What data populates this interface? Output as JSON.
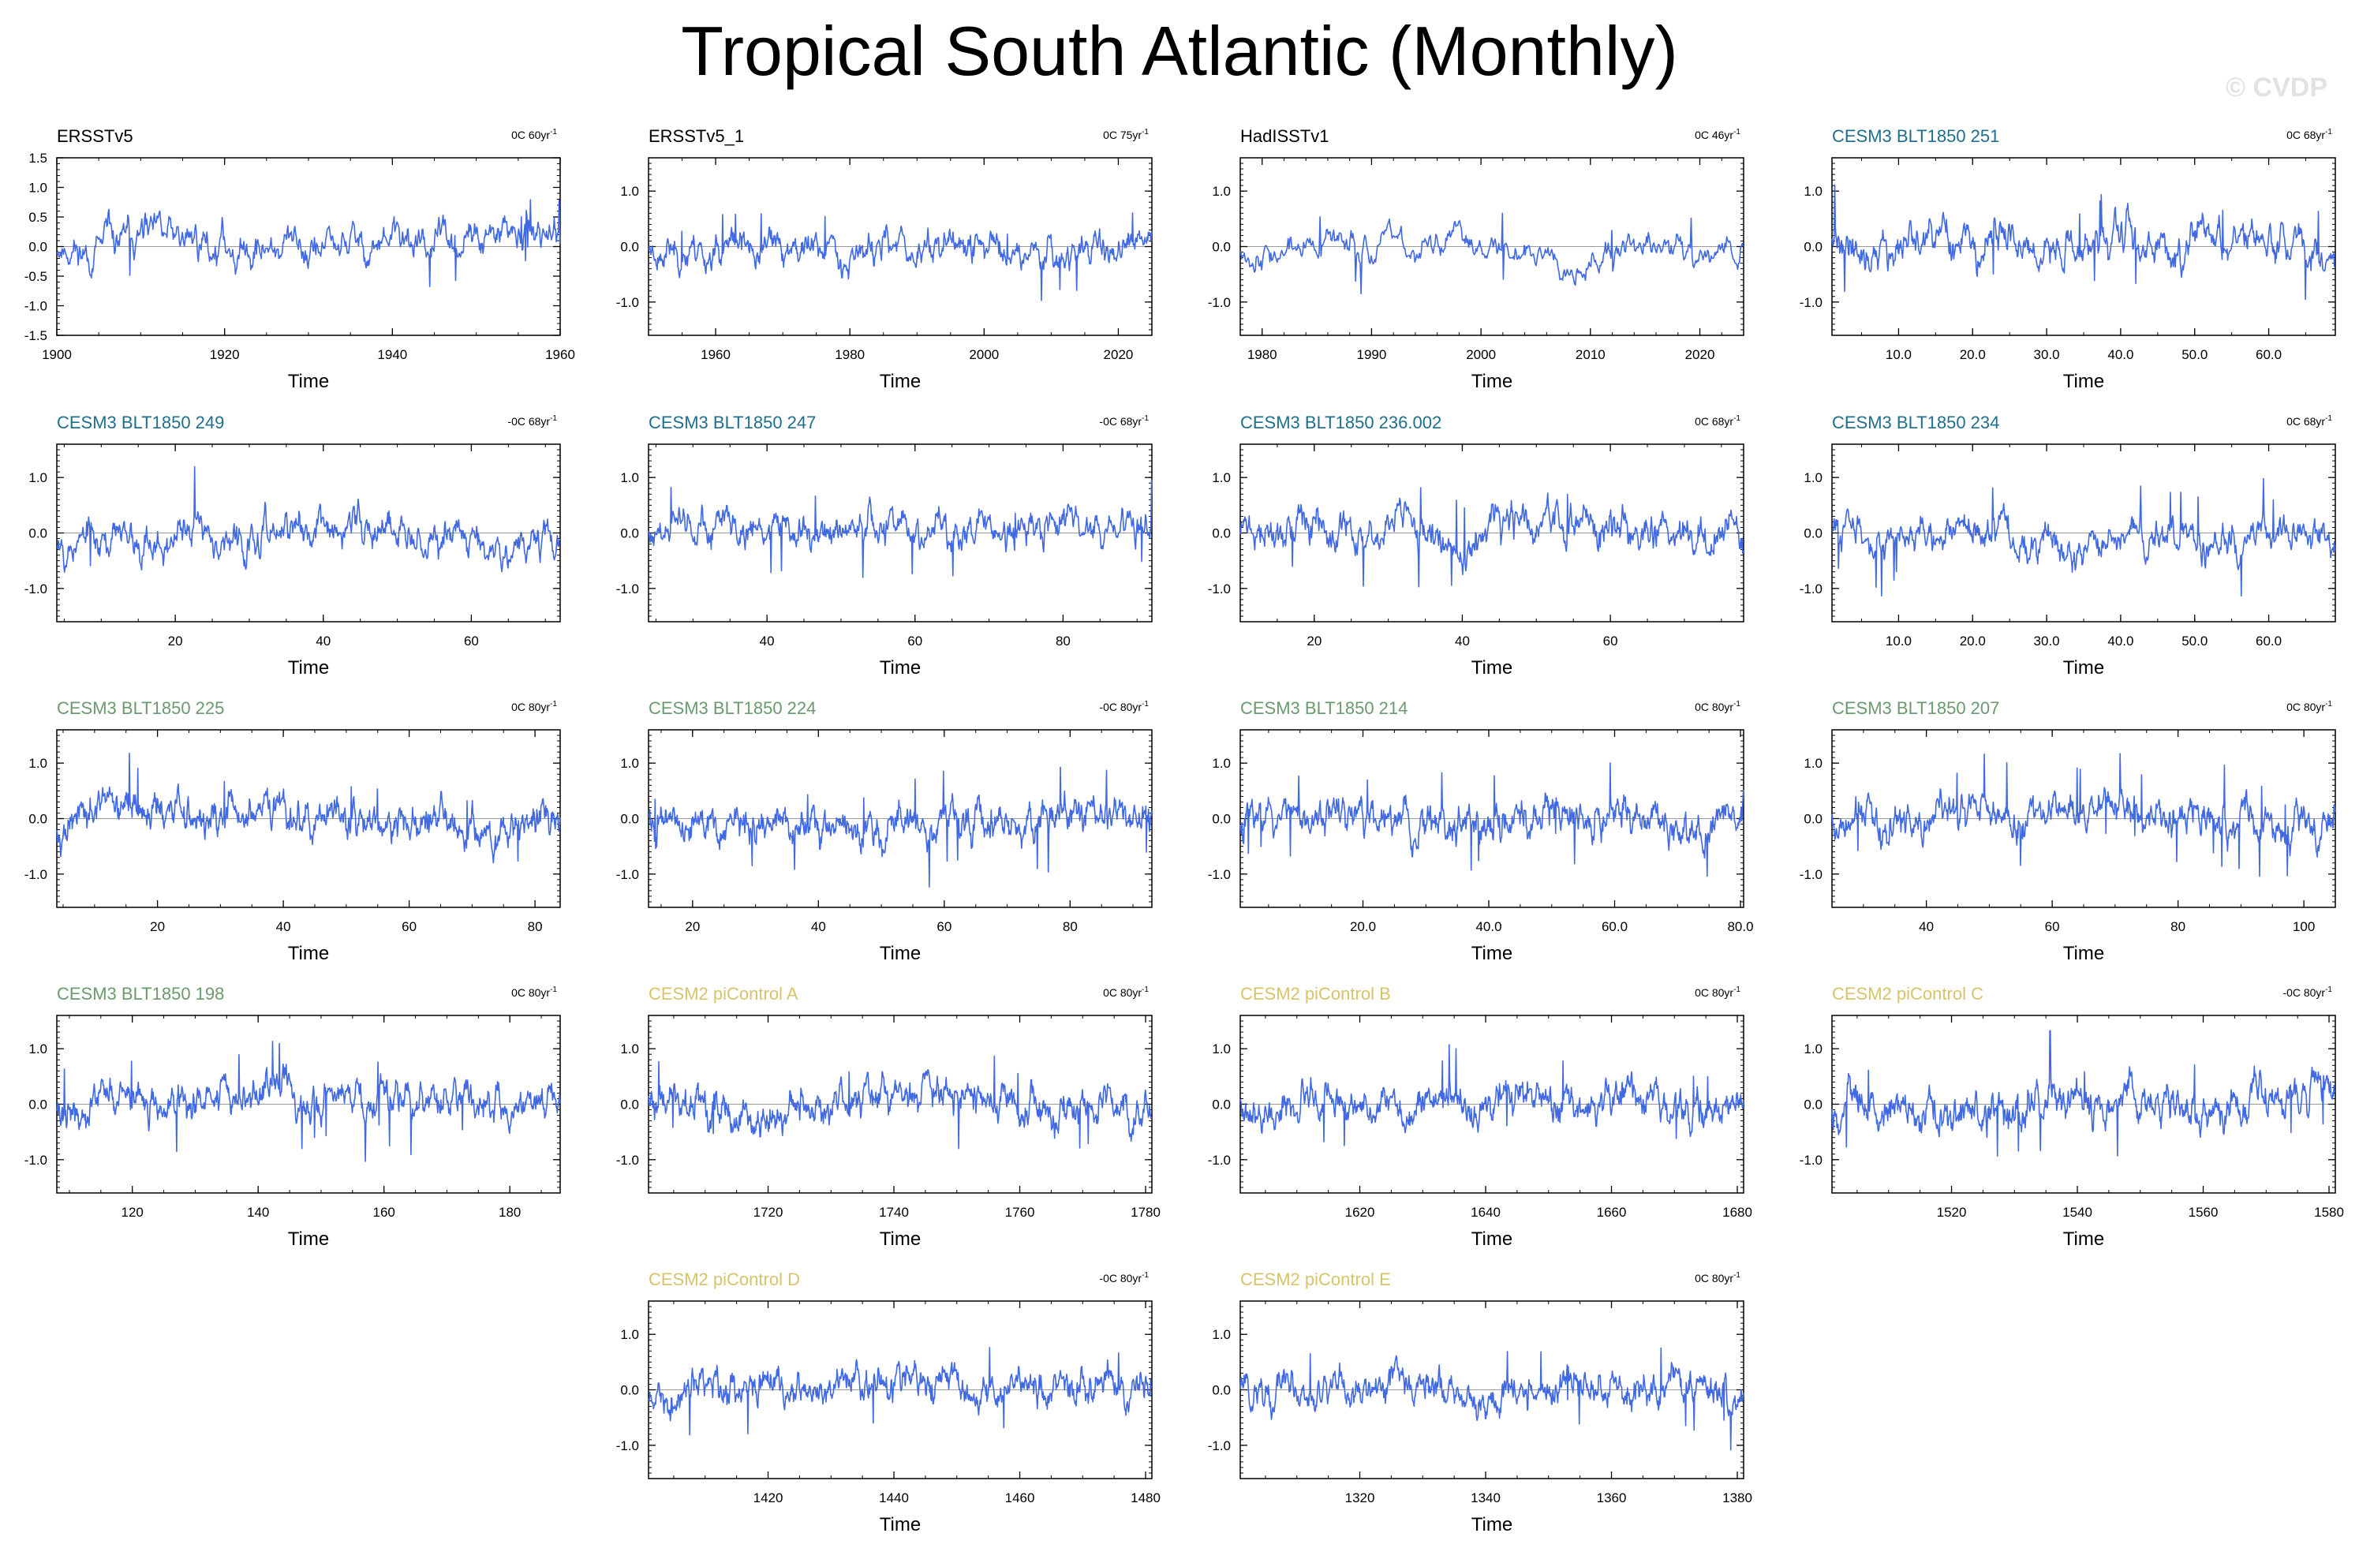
{
  "title": "Tropical South Atlantic (Monthly)",
  "watermark": "© CVDP",
  "colors": {
    "series": "#4169e1",
    "obs_title": "#000000",
    "cesm3_a": "#1f6e8c",
    "cesm3_b": "#6a9a6e",
    "cesm2": "#d7c46a",
    "axis": "#000000",
    "zero_line": "#9a9a9a"
  },
  "chart_data": [
    {
      "type": "line",
      "title": "ERSSTv5",
      "title_color": "obs",
      "trend": "0C 60yr",
      "trend_unit": "-1",
      "xlabel": "Time",
      "xlim": [
        1900,
        1960
      ],
      "xticks": [
        "1900",
        "1920",
        "1940",
        "1960"
      ],
      "ylim": [
        -1.5,
        1.5
      ],
      "yticks": [
        "1.5",
        "1.0",
        "0.5",
        "0.0",
        "-0.5",
        "-1.0",
        "-1.5"
      ],
      "seed": 11,
      "amp": 0.38
    },
    {
      "type": "line",
      "title": "ERSSTv5_1",
      "title_color": "obs",
      "trend": "0C 75yr",
      "trend_unit": "-1",
      "xlabel": "Time",
      "xlim": [
        1950,
        2025
      ],
      "xticks": [
        "1960",
        "1980",
        "2000",
        "2020"
      ],
      "xtick_vals": [
        1960,
        1980,
        2000,
        2020
      ],
      "ylim": [
        -1.6,
        1.6
      ],
      "yticks": [
        "1.0",
        "0.0",
        "-1.0"
      ],
      "seed": 23,
      "amp": 0.35
    },
    {
      "type": "line",
      "title": "HadISSTv1",
      "title_color": "obs",
      "trend": "0C 46yr",
      "trend_unit": "-1",
      "xlabel": "Time",
      "xlim": [
        1978,
        2024
      ],
      "xticks": [
        "1980",
        "1990",
        "2000",
        "2010",
        "2020"
      ],
      "xtick_vals": [
        1980,
        1990,
        2000,
        2010,
        2020
      ],
      "ylim": [
        -1.6,
        1.6
      ],
      "yticks": [
        "1.0",
        "0.0",
        "-1.0"
      ],
      "seed": 37,
      "amp": 0.33
    },
    {
      "type": "line",
      "title": "CESM3 BLT1850 251",
      "title_color": "cesm3_a",
      "trend": "0C 68yr",
      "trend_unit": "-1",
      "xlabel": "Time",
      "xlim": [
        1,
        69
      ],
      "xticks": [
        "10.0",
        "20.0",
        "30.0",
        "40.0",
        "50.0",
        "60.0"
      ],
      "xtick_vals": [
        10,
        20,
        30,
        40,
        50,
        60
      ],
      "ylim": [
        -1.6,
        1.6
      ],
      "yticks": [
        "1.0",
        "0.0",
        "-1.0"
      ],
      "seed": 41,
      "amp": 0.42
    },
    {
      "type": "line",
      "title": "CESM3 BLT1850 249",
      "title_color": "cesm3_a",
      "trend": "-0C 68yr",
      "trend_unit": "-1",
      "xlabel": "Time",
      "xlim": [
        4,
        72
      ],
      "xticks": [
        "20",
        "40",
        "60"
      ],
      "xtick_vals": [
        20,
        40,
        60
      ],
      "ylim": [
        -1.6,
        1.6
      ],
      "yticks": [
        "1.0",
        "0.0",
        "-1.0"
      ],
      "seed": 53,
      "amp": 0.42
    },
    {
      "type": "line",
      "title": "CESM3 BLT1850 247",
      "title_color": "cesm3_a",
      "trend": "-0C 68yr",
      "trend_unit": "-1",
      "xlabel": "Time",
      "xlim": [
        24,
        92
      ],
      "xticks": [
        "40",
        "60",
        "80"
      ],
      "xtick_vals": [
        40,
        60,
        80
      ],
      "ylim": [
        -1.6,
        1.6
      ],
      "yticks": [
        "1.0",
        "0.0",
        "-1.0"
      ],
      "seed": 61,
      "amp": 0.4
    },
    {
      "type": "line",
      "title": "CESM3 BLT1850 236.002",
      "title_color": "cesm3_a",
      "trend": "0C 68yr",
      "trend_unit": "-1",
      "xlabel": "Time",
      "xlim": [
        10,
        78
      ],
      "xticks": [
        "20",
        "40",
        "60"
      ],
      "xtick_vals": [
        20,
        40,
        60
      ],
      "ylim": [
        -1.6,
        1.6
      ],
      "yticks": [
        "1.0",
        "0.0",
        "-1.0"
      ],
      "seed": 71,
      "amp": 0.44
    },
    {
      "type": "line",
      "title": "CESM3 BLT1850 234",
      "title_color": "cesm3_a",
      "trend": "0C 68yr",
      "trend_unit": "-1",
      "xlabel": "Time",
      "xlim": [
        1,
        69
      ],
      "xticks": [
        "10.0",
        "20.0",
        "30.0",
        "40.0",
        "50.0",
        "60.0"
      ],
      "xtick_vals": [
        10,
        20,
        30,
        40,
        50,
        60
      ],
      "ylim": [
        -1.6,
        1.6
      ],
      "yticks": [
        "1.0",
        "0.0",
        "-1.0"
      ],
      "seed": 83,
      "amp": 0.4
    },
    {
      "type": "line",
      "title": "CESM3 BLT1850 225",
      "title_color": "cesm3_b",
      "trend": "0C 80yr",
      "trend_unit": "-1",
      "xlabel": "Time",
      "xlim": [
        4,
        84
      ],
      "xticks": [
        "20",
        "40",
        "60",
        "80"
      ],
      "xtick_vals": [
        20,
        40,
        60,
        80
      ],
      "ylim": [
        -1.6,
        1.6
      ],
      "yticks": [
        "1.0",
        "0.0",
        "-1.0"
      ],
      "seed": 97,
      "amp": 0.42
    },
    {
      "type": "line",
      "title": "CESM3 BLT1850 224",
      "title_color": "cesm3_b",
      "trend": "-0C 80yr",
      "trend_unit": "-1",
      "xlabel": "Time",
      "xlim": [
        13,
        93
      ],
      "xticks": [
        "20",
        "40",
        "60",
        "80"
      ],
      "xtick_vals": [
        20,
        40,
        60,
        80
      ],
      "ylim": [
        -1.6,
        1.6
      ],
      "yticks": [
        "1.0",
        "0.0",
        "-1.0"
      ],
      "seed": 101,
      "amp": 0.42
    },
    {
      "type": "line",
      "title": "CESM3 BLT1850 214",
      "title_color": "cesm3_b",
      "trend": "0C 80yr",
      "trend_unit": "-1",
      "xlabel": "Time",
      "xlim": [
        0.5,
        80.5
      ],
      "xticks": [
        "20.0",
        "40.0",
        "60.0",
        "80.0"
      ],
      "xtick_vals": [
        20,
        40,
        60,
        80
      ],
      "ylim": [
        -1.6,
        1.6
      ],
      "yticks": [
        "1.0",
        "0.0",
        "-1.0"
      ],
      "seed": 113,
      "amp": 0.42
    },
    {
      "type": "line",
      "title": "CESM3 BLT1850 207",
      "title_color": "cesm3_b",
      "trend": "0C 80yr",
      "trend_unit": "-1",
      "xlabel": "Time",
      "xlim": [
        25,
        105
      ],
      "xticks": [
        "40",
        "60",
        "80",
        "100"
      ],
      "xtick_vals": [
        40,
        60,
        80,
        100
      ],
      "ylim": [
        -1.6,
        1.6
      ],
      "yticks": [
        "1.0",
        "0.0",
        "-1.0"
      ],
      "seed": 127,
      "amp": 0.42
    },
    {
      "type": "line",
      "title": "CESM3 BLT1850 198",
      "title_color": "cesm3_b",
      "trend": "0C 80yr",
      "trend_unit": "-1",
      "xlabel": "Time",
      "xlim": [
        108,
        188
      ],
      "xticks": [
        "120",
        "140",
        "160",
        "180"
      ],
      "xtick_vals": [
        120,
        140,
        160,
        180
      ],
      "ylim": [
        -1.6,
        1.6
      ],
      "yticks": [
        "1.0",
        "0.0",
        "-1.0"
      ],
      "seed": 131,
      "amp": 0.4
    },
    {
      "type": "line",
      "title": "CESM2 piControl A",
      "title_color": "cesm2",
      "trend": "0C 80yr",
      "trend_unit": "-1",
      "xlabel": "Time",
      "xlim": [
        1701,
        1781
      ],
      "xticks": [
        "1720",
        "1740",
        "1760",
        "1780"
      ],
      "xtick_vals": [
        1720,
        1740,
        1760,
        1780
      ],
      "ylim": [
        -1.6,
        1.6
      ],
      "yticks": [
        "1.0",
        "0.0",
        "-1.0"
      ],
      "seed": 139,
      "amp": 0.42
    },
    {
      "type": "line",
      "title": "CESM2 piControl B",
      "title_color": "cesm2",
      "trend": "0C 80yr",
      "trend_unit": "-1",
      "xlabel": "Time",
      "xlim": [
        1601,
        1681
      ],
      "xticks": [
        "1620",
        "1640",
        "1660",
        "1680"
      ],
      "xtick_vals": [
        1620,
        1640,
        1660,
        1680
      ],
      "ylim": [
        -1.6,
        1.6
      ],
      "yticks": [
        "1.0",
        "0.0",
        "-1.0"
      ],
      "seed": 149,
      "amp": 0.4
    },
    {
      "type": "line",
      "title": "CESM2 piControl C",
      "title_color": "cesm2",
      "trend": "-0C 80yr",
      "trend_unit": "-1",
      "xlabel": "Time",
      "xlim": [
        1501,
        1581
      ],
      "xticks": [
        "1520",
        "1540",
        "1560",
        "1580"
      ],
      "xtick_vals": [
        1520,
        1540,
        1560,
        1580
      ],
      "ylim": [
        -1.6,
        1.6
      ],
      "yticks": [
        "1.0",
        "0.0",
        "-1.0"
      ],
      "seed": 157,
      "amp": 0.44
    },
    {
      "type": "line",
      "title": "CESM2 piControl D",
      "title_color": "cesm2",
      "trend": "-0C 80yr",
      "trend_unit": "-1",
      "xlabel": "Time",
      "xlim": [
        1401,
        1481
      ],
      "xticks": [
        "1420",
        "1440",
        "1460",
        "1480"
      ],
      "xtick_vals": [
        1420,
        1440,
        1460,
        1480
      ],
      "ylim": [
        -1.6,
        1.6
      ],
      "yticks": [
        "1.0",
        "0.0",
        "-1.0"
      ],
      "seed": 163,
      "amp": 0.4
    },
    {
      "type": "line",
      "title": "CESM2 piControl E",
      "title_color": "cesm2",
      "trend": "0C 80yr",
      "trend_unit": "-1",
      "xlabel": "Time",
      "xlim": [
        1301,
        1381
      ],
      "xticks": [
        "1320",
        "1340",
        "1360",
        "1380"
      ],
      "xtick_vals": [
        1320,
        1340,
        1360,
        1380
      ],
      "ylim": [
        -1.6,
        1.6
      ],
      "yticks": [
        "1.0",
        "0.0",
        "-1.0"
      ],
      "seed": 173,
      "amp": 0.38
    }
  ]
}
